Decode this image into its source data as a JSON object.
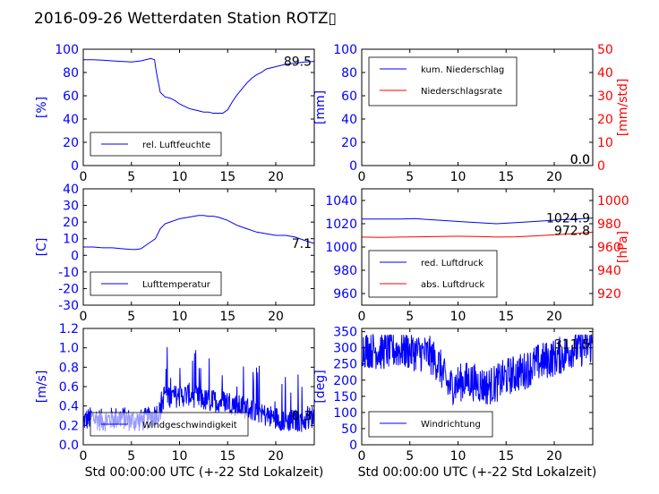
{
  "title": "2016-09-26 Wetterdaten Station ROTZ▯",
  "xlabel": "Std 00:00:00 UTC (+-22 Std Lokalzeit)",
  "colors": {
    "blue": "#0000ff",
    "red": "#ff0000",
    "black": "#000000"
  },
  "chart_data": [
    {
      "id": "humidity",
      "type": "line",
      "ylabel": "[%]",
      "xlim": [
        0,
        24
      ],
      "ylim": [
        0,
        100
      ],
      "xticks": [
        0,
        5,
        10,
        15,
        20
      ],
      "yticks": [
        0,
        20,
        40,
        60,
        80,
        100
      ],
      "last_value": "89.5",
      "legend": "top-left-inside-bottom",
      "series": [
        {
          "name": "rel. Luftfeuchte",
          "color": "#0000ff",
          "x": [
            0,
            1,
            2,
            3,
            4,
            5,
            6,
            7,
            7.4,
            7.6,
            8,
            8.5,
            9,
            9.5,
            10,
            10.5,
            11,
            11.5,
            12,
            12.5,
            13,
            13.5,
            14,
            14.5,
            15,
            15.5,
            16,
            16.5,
            17,
            17.5,
            18,
            18.5,
            19,
            20,
            21,
            22,
            23,
            24
          ],
          "y": [
            91,
            91,
            90.5,
            90,
            89.5,
            89,
            90,
            92,
            91,
            80,
            63,
            59,
            58,
            56,
            53,
            51,
            49,
            48,
            47,
            46,
            46,
            45,
            45,
            45,
            48,
            55,
            61,
            66,
            71,
            75,
            78,
            80,
            83,
            85,
            87,
            88,
            89,
            89.5
          ]
        }
      ]
    },
    {
      "id": "precipitation",
      "type": "line",
      "ylabel": "[mm]",
      "y2label": "[mm/std]",
      "xlim": [
        0,
        24
      ],
      "ylim": [
        0,
        100
      ],
      "y2lim": [
        0,
        50
      ],
      "xticks": [
        0,
        5,
        10,
        15,
        20
      ],
      "yticks": [
        0,
        20,
        40,
        60,
        80,
        100
      ],
      "y2ticks": [
        0,
        10,
        20,
        30,
        40,
        50
      ],
      "last_value": "0.0",
      "last_value2": "0.0",
      "legend": "top-left",
      "series": [
        {
          "name": "kum. Niederschlag",
          "color": "#0000ff",
          "x": [
            0,
            24
          ],
          "y": [
            0,
            0
          ]
        },
        {
          "name": "Niederschlagsrate",
          "color": "#ff0000",
          "x": [
            0,
            24
          ],
          "y": [
            0,
            0
          ]
        }
      ]
    },
    {
      "id": "temperature",
      "type": "line",
      "ylabel": "[C]",
      "xlim": [
        0,
        24
      ],
      "ylim": [
        -30,
        40
      ],
      "xticks": [
        0,
        5,
        10,
        15,
        20
      ],
      "yticks": [
        -30,
        -20,
        -10,
        0,
        10,
        20,
        30,
        40
      ],
      "last_value": "7.1",
      "legend": "bottom-left",
      "series": [
        {
          "name": "Lufttemperatur",
          "color": "#0000ff",
          "x": [
            0,
            1,
            2,
            3,
            4,
            5,
            5.5,
            6,
            6.5,
            7,
            7.5,
            8,
            8.5,
            9,
            9.5,
            10,
            10.5,
            11,
            11.5,
            12,
            12.5,
            13,
            13.5,
            14,
            14.5,
            15,
            15.5,
            16,
            17,
            18,
            19,
            20,
            21,
            22,
            23,
            24
          ],
          "y": [
            5,
            5,
            4.5,
            4.5,
            4,
            3.5,
            3.5,
            4,
            6,
            8,
            10,
            16,
            19,
            20,
            21,
            22,
            22.5,
            23,
            23.5,
            24,
            24,
            23.5,
            23.5,
            23,
            22,
            21,
            19.5,
            18,
            16,
            14,
            13,
            12,
            12,
            11,
            9,
            7.1
          ]
        }
      ]
    },
    {
      "id": "pressure",
      "type": "line",
      "ylabel": "",
      "y2label": "[hPa]",
      "xlim": [
        0,
        24
      ],
      "ylim": [
        950,
        1050
      ],
      "y2lim": [
        910,
        1010
      ],
      "xticks": [
        0,
        5,
        10,
        15,
        20
      ],
      "yticks": [
        960,
        980,
        1000,
        1020,
        1040
      ],
      "y2ticks": [
        920,
        940,
        960,
        980,
        1000
      ],
      "last_value": "1024.9",
      "last_value2": "972.8",
      "legend": "bottom-left",
      "series": [
        {
          "name": "red. Luftdruck",
          "color": "#0000ff",
          "axis": "left",
          "x": [
            0,
            2,
            4,
            5.5,
            7,
            9,
            11,
            13,
            14,
            15,
            17,
            19,
            21,
            23,
            24
          ],
          "y": [
            1024,
            1024,
            1024,
            1024.5,
            1023.5,
            1022.5,
            1021.5,
            1020.5,
            1020,
            1020.5,
            1021.5,
            1022.5,
            1023.5,
            1024.5,
            1024.9
          ]
        },
        {
          "name": "abs. Luftdruck",
          "color": "#ff0000",
          "axis": "right",
          "x": [
            0,
            2,
            4,
            6,
            8,
            10,
            12,
            14,
            16,
            18,
            20,
            22,
            24
          ],
          "y": [
            968.5,
            968.3,
            968.5,
            968.8,
            969,
            969.2,
            969,
            968.5,
            968.8,
            969.5,
            970.5,
            971.5,
            972.8
          ]
        }
      ]
    },
    {
      "id": "wind_speed",
      "type": "line",
      "ylabel": "[m/s]",
      "xlim": [
        0,
        24
      ],
      "ylim": [
        0,
        1.2
      ],
      "xticks": [
        0,
        5,
        10,
        15,
        20
      ],
      "yticks": [
        0.0,
        0.2,
        0.4,
        0.6,
        0.8,
        1.0,
        1.2
      ],
      "last_value": "0.3",
      "legend": "bottom",
      "series": [
        {
          "name": "Windgeschwindigkeit",
          "color": "#0000ff",
          "noisy": true,
          "x": [
            0,
            1,
            2,
            3,
            4,
            5,
            6,
            7,
            8,
            8.5,
            9,
            10,
            11,
            12,
            13,
            14,
            15,
            16,
            17,
            18,
            19,
            20,
            21,
            22,
            23,
            24
          ],
          "y": [
            0.25,
            0.28,
            0.25,
            0.27,
            0.28,
            0.25,
            0.25,
            0.28,
            0.35,
            0.55,
            0.5,
            0.5,
            0.52,
            0.48,
            0.45,
            0.45,
            0.45,
            0.4,
            0.38,
            0.35,
            0.3,
            0.28,
            0.25,
            0.25,
            0.25,
            0.3
          ]
        }
      ]
    },
    {
      "id": "wind_direction",
      "type": "line",
      "ylabel": "[deg]",
      "xlim": [
        0,
        24
      ],
      "ylim": [
        0,
        360
      ],
      "xticks": [
        0,
        5,
        10,
        15,
        20
      ],
      "yticks": [
        0,
        50,
        100,
        150,
        200,
        250,
        300,
        350
      ],
      "last_value": "311.5",
      "legend": "bottom-left",
      "series": [
        {
          "name": "Windrichtung",
          "color": "#0000ff",
          "noisy": true,
          "x": [
            0,
            2,
            4,
            6,
            7,
            8,
            9,
            10,
            11,
            12,
            13,
            14,
            15,
            16,
            17,
            18,
            19,
            20,
            21,
            22,
            23,
            24
          ],
          "y": [
            300,
            290,
            295,
            285,
            280,
            250,
            180,
            190,
            200,
            190,
            180,
            190,
            210,
            220,
            230,
            250,
            260,
            270,
            280,
            300,
            300,
            311.5
          ]
        }
      ]
    }
  ]
}
